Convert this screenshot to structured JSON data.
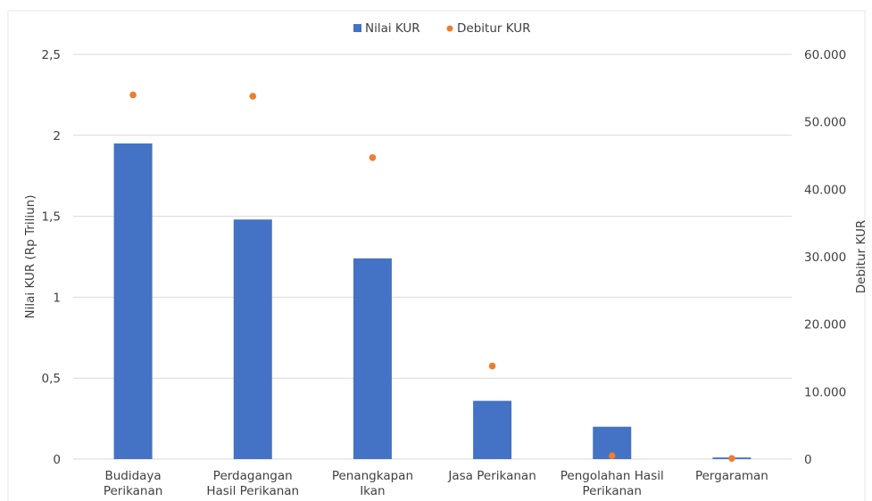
{
  "chart_data": {
    "type": "bar",
    "categories": [
      [
        "Budidaya",
        "Perikanan"
      ],
      [
        "Perdagangan",
        "Hasil Perikanan"
      ],
      [
        "Penangkapan",
        "Ikan"
      ],
      [
        "Jasa Perikanan"
      ],
      [
        "Pengolahan Hasil",
        "Perikanan"
      ],
      [
        "Pergaraman"
      ]
    ],
    "series": [
      {
        "name": "Nilai KUR",
        "type": "bar",
        "axis": "left",
        "color": "#4472c4",
        "values": [
          1.95,
          1.48,
          1.24,
          0.36,
          0.2,
          0.01
        ]
      },
      {
        "name": "Debitur KUR",
        "type": "scatter",
        "axis": "right",
        "color": "#ed7d31",
        "values": [
          54000,
          53800,
          44700,
          13800,
          500,
          100
        ]
      }
    ],
    "ylabel": "Nilai KUR (Rp Triliun)",
    "y2label": "Debitur KUR",
    "ylim": [
      0,
      2.5
    ],
    "y2lim": [
      0,
      60000
    ],
    "yticks": [
      0,
      0.5,
      1,
      1.5,
      2,
      2.5
    ],
    "ytick_labels": [
      "0",
      "0,5",
      "1",
      "1,5",
      "2",
      "2,5"
    ],
    "y2ticks": [
      0,
      10000,
      20000,
      30000,
      40000,
      50000,
      60000
    ],
    "y2tick_labels": [
      "0",
      "10.000",
      "20.000",
      "30.000",
      "40.000",
      "50.000",
      "60.000"
    ],
    "legend_position": "top",
    "grid": true
  }
}
